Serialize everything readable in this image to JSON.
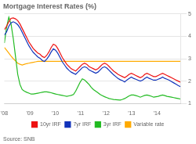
{
  "chart_data": {
    "type": "line",
    "title": "Mortgage Interest Rates (%)",
    "source": "Source: SNB",
    "x": [
      2008,
      2008.0876,
      2008.1752,
      2008.2628,
      2008.3504,
      2008.438,
      2008.5256,
      2008.6132,
      2008.7008,
      2008.7884,
      2008.8759,
      2008.9635,
      2009.0511,
      2009.1387,
      2009.2263,
      2009.3139,
      2009.4015,
      2009.4891,
      2009.5767,
      2009.6643,
      2009.7519,
      2009.8395,
      2009.9271,
      2010.0147,
      2010.1023,
      2010.1899,
      2010.2775,
      2010.3651,
      2010.4527,
      2010.5403,
      2010.6278,
      2010.7154,
      2010.803,
      2010.8906,
      2010.9782,
      2011.0658,
      2011.1534,
      2011.241,
      2011.3286,
      2011.4162,
      2011.5038,
      2011.5914,
      2011.679,
      2011.7666,
      2011.8542,
      2011.9418,
      2012.0294,
      2012.117,
      2012.2046,
      2012.2922,
      2012.3797,
      2012.4673,
      2012.5549,
      2012.6425,
      2012.7301,
      2012.8177,
      2012.9053,
      2012.9929,
      2013.0805,
      2013.1681,
      2013.2557,
      2013.3433,
      2013.4309,
      2013.5185,
      2013.6061,
      2013.6937,
      2013.7813,
      2013.8689,
      2013.9565,
      2014.0441,
      2014.1316,
      2014.2192,
      2014.3068,
      2014.3944,
      2014.482,
      2014.5696,
      2014.6572,
      2014.7448,
      2014.8324,
      2014.92
    ],
    "xlim": [
      2008,
      2014.92
    ],
    "xticks": [
      {
        "value": 2008,
        "label": "'08"
      },
      {
        "value": 2009,
        "label": "'09"
      },
      {
        "value": 2010,
        "label": "'10"
      },
      {
        "value": 2011,
        "label": "'11"
      },
      {
        "value": 2012,
        "label": "'12"
      },
      {
        "value": 2013,
        "label": "'13"
      },
      {
        "value": 2014,
        "label": "'14"
      }
    ],
    "ylim": [
      1,
      5
    ],
    "yticks": [
      1,
      2,
      3,
      4,
      5
    ],
    "grid": true,
    "legend": "bottom",
    "series": [
      {
        "name": "10yr IRF",
        "color": "#ee1111",
        "values": [
          4.3,
          4.45,
          4.65,
          4.8,
          4.82,
          4.78,
          4.7,
          4.55,
          4.35,
          4.15,
          3.95,
          3.75,
          3.6,
          3.45,
          3.35,
          3.25,
          3.2,
          3.1,
          3.05,
          3.15,
          3.3,
          3.5,
          3.65,
          3.6,
          3.45,
          3.25,
          3.05,
          2.9,
          2.75,
          2.65,
          2.55,
          2.5,
          2.45,
          2.55,
          2.65,
          2.75,
          2.8,
          2.75,
          2.65,
          2.6,
          2.55,
          2.5,
          2.55,
          2.65,
          2.75,
          2.8,
          2.75,
          2.65,
          2.55,
          2.45,
          2.38,
          2.3,
          2.25,
          2.2,
          2.15,
          2.22,
          2.3,
          2.35,
          2.3,
          2.25,
          2.2,
          2.15,
          2.2,
          2.3,
          2.35,
          2.3,
          2.25,
          2.2,
          2.2,
          2.25,
          2.3,
          2.35,
          2.3,
          2.25,
          2.2,
          2.15,
          2.1,
          2.05,
          2.0,
          1.95
        ]
      },
      {
        "name": "7yr IRF",
        "color": "#1133bb",
        "values": [
          4.05,
          4.2,
          4.45,
          4.6,
          4.65,
          4.6,
          4.52,
          4.38,
          4.18,
          3.98,
          3.78,
          3.58,
          3.42,
          3.28,
          3.18,
          3.08,
          3.02,
          2.92,
          2.88,
          2.98,
          3.12,
          3.3,
          3.44,
          3.38,
          3.24,
          3.05,
          2.86,
          2.72,
          2.58,
          2.48,
          2.4,
          2.35,
          2.3,
          2.4,
          2.5,
          2.6,
          2.64,
          2.6,
          2.5,
          2.45,
          2.4,
          2.35,
          2.4,
          2.5,
          2.6,
          2.64,
          2.58,
          2.48,
          2.38,
          2.28,
          2.2,
          2.12,
          2.06,
          2.02,
          1.96,
          2.05,
          2.12,
          2.18,
          2.12,
          2.08,
          2.04,
          2.0,
          2.04,
          2.12,
          2.18,
          2.12,
          2.08,
          2.04,
          2.04,
          2.08,
          2.12,
          2.18,
          2.12,
          2.08,
          2.04,
          1.98,
          1.92,
          1.86,
          1.8,
          1.75
        ]
      },
      {
        "name": "3yr IRF",
        "color": "#22bb22",
        "values": [
          3.7,
          4.4,
          4.85,
          4.55,
          3.9,
          3.1,
          2.3,
          1.85,
          1.62,
          1.55,
          1.5,
          1.46,
          1.42,
          1.42,
          1.44,
          1.46,
          1.48,
          1.5,
          1.52,
          1.52,
          1.5,
          1.48,
          1.45,
          1.42,
          1.4,
          1.38,
          1.36,
          1.34,
          1.32,
          1.34,
          1.36,
          1.4,
          1.55,
          1.75,
          1.95,
          2.1,
          2.05,
          1.95,
          1.85,
          1.72,
          1.62,
          1.55,
          1.48,
          1.4,
          1.35,
          1.3,
          1.26,
          1.22,
          1.2,
          1.18,
          1.17,
          1.16,
          1.15,
          1.18,
          1.22,
          1.28,
          1.34,
          1.38,
          1.38,
          1.35,
          1.32,
          1.28,
          1.32,
          1.36,
          1.38,
          1.35,
          1.32,
          1.28,
          1.3,
          1.32,
          1.35,
          1.38,
          1.35,
          1.32,
          1.3,
          1.28,
          1.26,
          1.24,
          1.22,
          1.2
        ]
      },
      {
        "name": "Variable rate",
        "color": "#ffaa00",
        "values": [
          3.5,
          3.38,
          3.25,
          3.12,
          3.0,
          2.9,
          2.8,
          2.75,
          2.72,
          2.75,
          2.78,
          2.8,
          2.82,
          2.84,
          2.86,
          2.88,
          2.88,
          2.88,
          2.88,
          2.88,
          2.88,
          2.88,
          2.88,
          2.88,
          2.88,
          2.88,
          2.88,
          2.88,
          2.88,
          2.88,
          2.88,
          2.88,
          2.88,
          2.88,
          2.88,
          2.88,
          2.88,
          2.88,
          2.88,
          2.88,
          2.88,
          2.88,
          2.88,
          2.88,
          2.88,
          2.88,
          2.88,
          2.88,
          2.88,
          2.88,
          2.88,
          2.88,
          2.88,
          2.88,
          2.88,
          2.88,
          2.88,
          2.88,
          2.88,
          2.88,
          2.88,
          2.88,
          2.88,
          2.88,
          2.88,
          2.88,
          2.88,
          2.88,
          2.88,
          2.88,
          2.88,
          2.88,
          2.88,
          2.88,
          2.88,
          2.88,
          2.88,
          2.88,
          2.88,
          2.88
        ]
      }
    ]
  }
}
